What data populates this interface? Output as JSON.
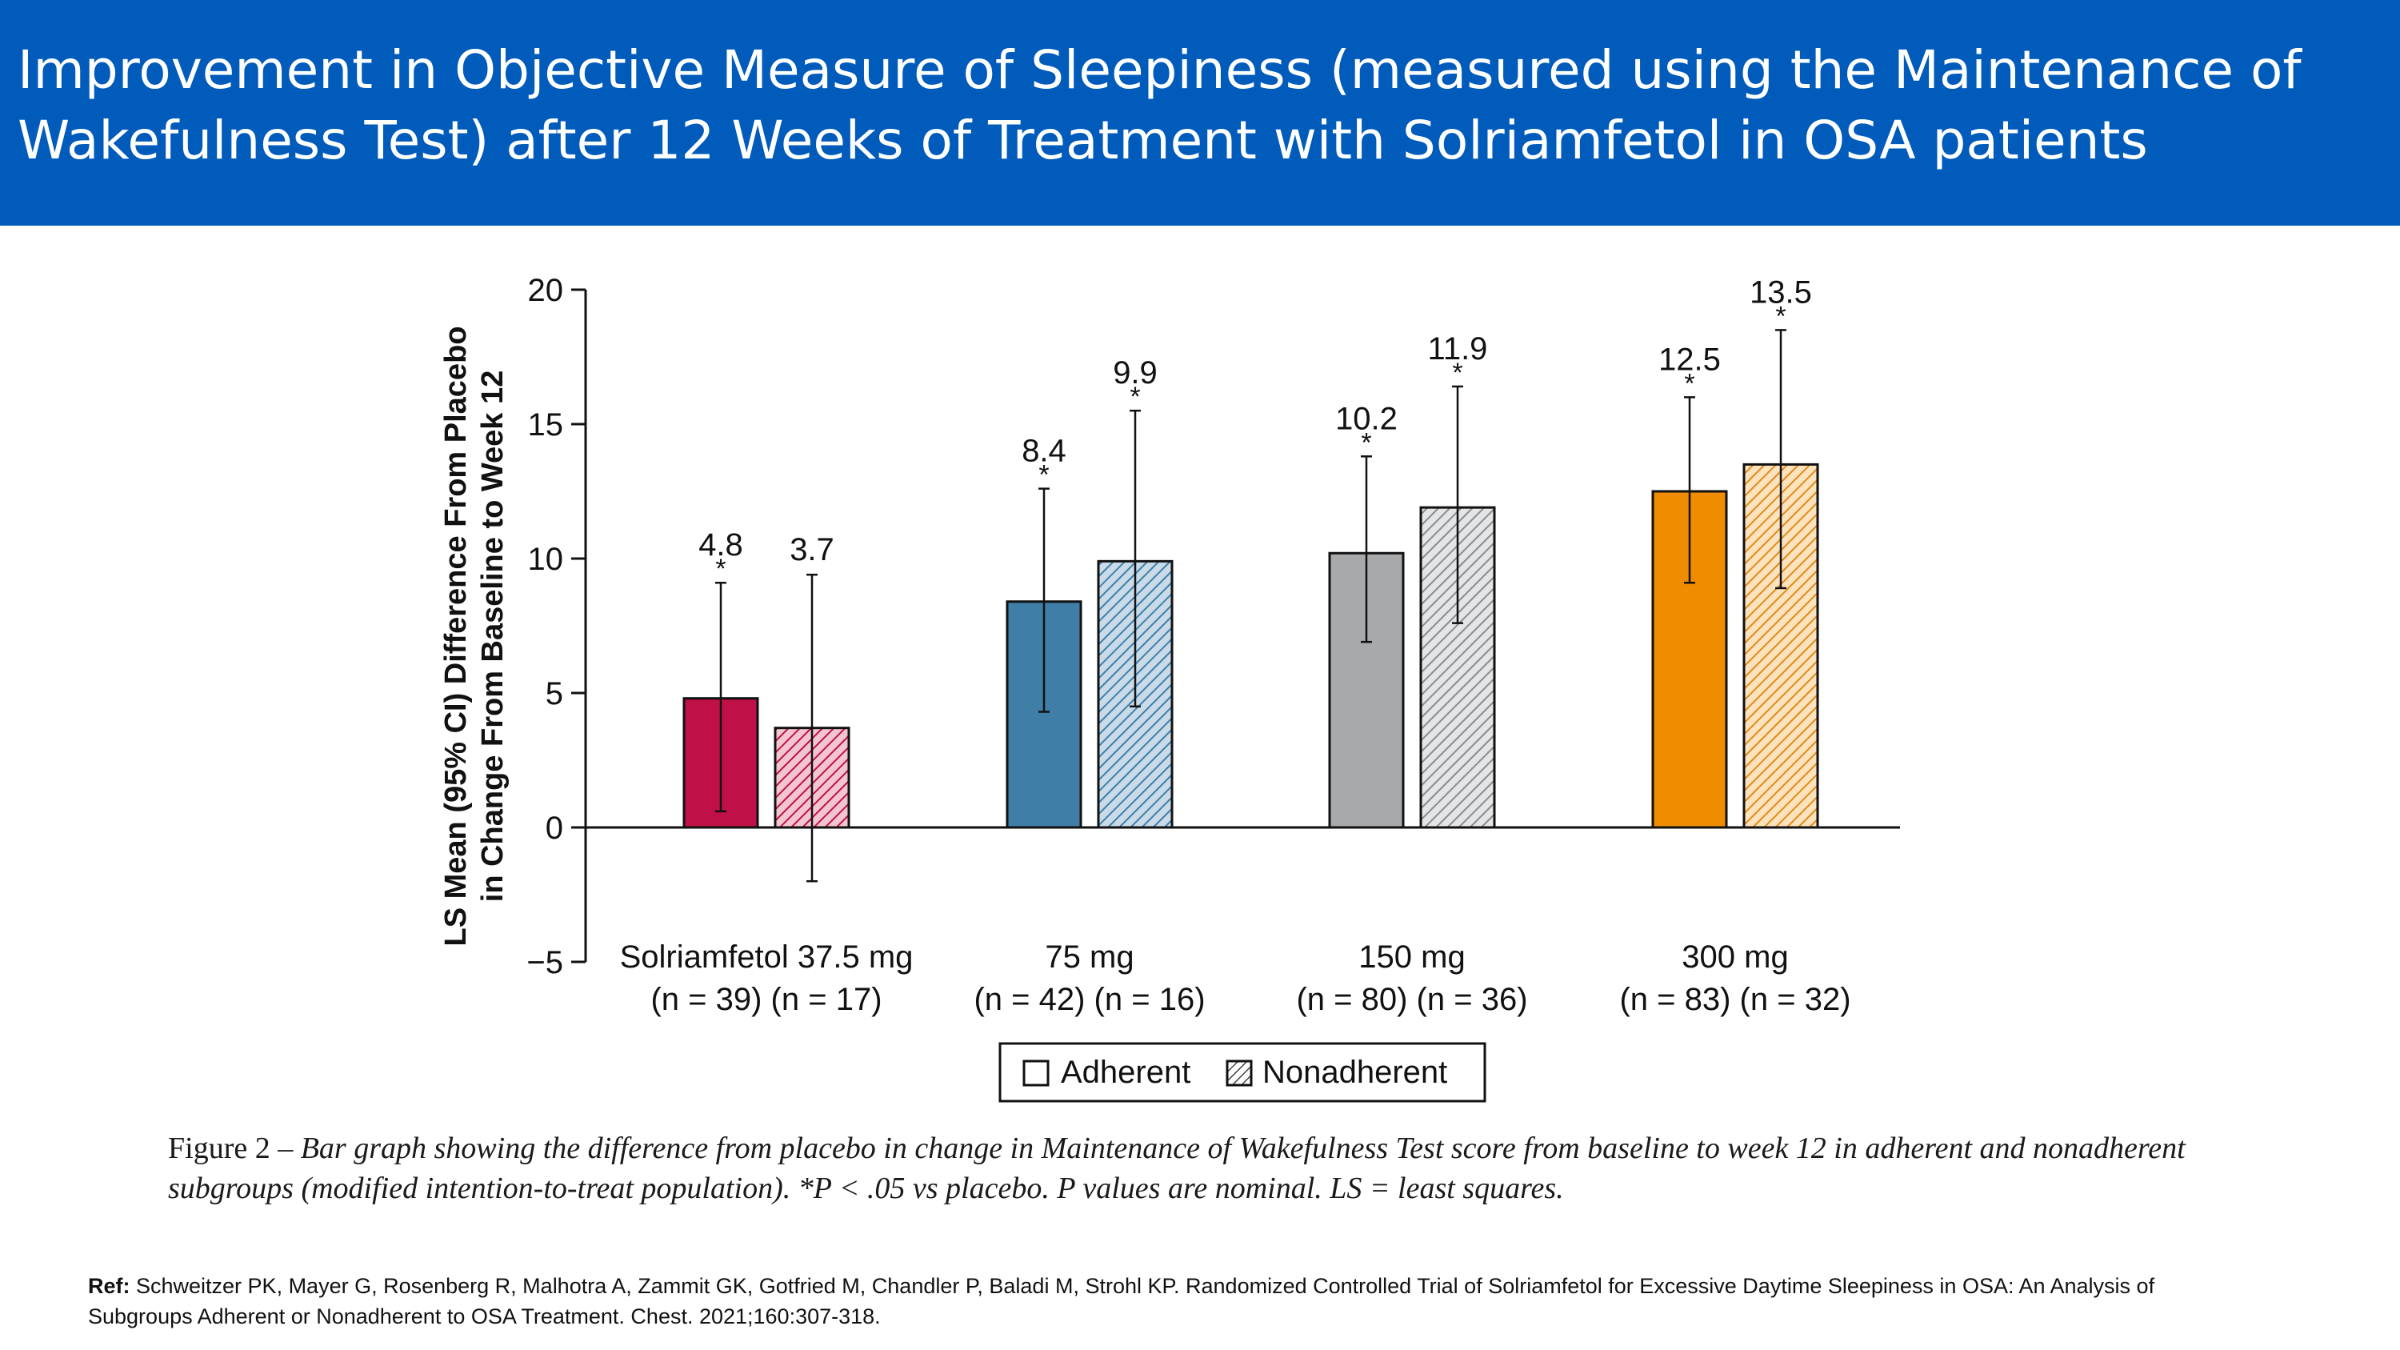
{
  "header": {
    "title": "Improvement in Objective Measure of Sleepiness (measured using the Maintenance of Wakefulness Test) after 12 Weeks of Treatment with Solriamfetol in OSA patients"
  },
  "chart_data": {
    "type": "bar",
    "ylabel_line1": "LS Mean (95% CI) Difference From Placebo",
    "ylabel_line2": "in Change From Baseline to Week 12",
    "ylim": [
      -5,
      20
    ],
    "yticks": [
      20,
      15,
      10,
      5,
      0,
      -5
    ],
    "ytick_labels": [
      "20",
      "15",
      "10",
      "5",
      "0",
      "−5"
    ],
    "groups": [
      {
        "label": "Solriamfetol 37.5 mg",
        "n_label": "(n = 39) (n = 17)",
        "color": "#c01048"
      },
      {
        "label": "75 mg",
        "n_label": "(n = 42) (n = 16)",
        "color": "#3f7ea6"
      },
      {
        "label": "150 mg",
        "n_label": "(n = 80) (n = 36)",
        "color": "#a8a9ab"
      },
      {
        "label": "300 mg",
        "n_label": "(n = 83) (n = 32)",
        "color": "#f08c00"
      }
    ],
    "series": [
      {
        "name": "Adherent",
        "values": [
          4.8,
          8.4,
          10.2,
          12.5
        ],
        "value_labels": [
          "4.8",
          "8.4",
          "10.2",
          "12.5"
        ],
        "ci_low": [
          0.6,
          4.3,
          6.9,
          9.1
        ],
        "ci_high": [
          9.1,
          12.6,
          13.8,
          16.0
        ],
        "significant": [
          true,
          true,
          true,
          true
        ]
      },
      {
        "name": "Nonadherent",
        "values": [
          3.7,
          9.9,
          11.9,
          13.5
        ],
        "value_labels": [
          "3.7",
          "9.9",
          "11.9",
          "13.5"
        ],
        "ci_low": [
          -2.0,
          4.5,
          7.6,
          8.9
        ],
        "ci_high": [
          9.4,
          15.5,
          16.4,
          18.5
        ],
        "significant": [
          false,
          true,
          true,
          true
        ]
      }
    ],
    "significance_marker": "*",
    "legend": {
      "items": [
        "Adherent",
        "Nonadherent"
      ],
      "position": "bottom-center"
    }
  },
  "caption": {
    "figure_label": "Figure 2 – ",
    "text": "Bar graph showing the difference from placebo in change in Maintenance of Wakefulness Test score from baseline to week 12 in adherent and nonadherent subgroups (modified intention-to-treat population). *P < .05 vs placebo. P values are nominal. LS = least squares."
  },
  "reference": {
    "label": "Ref:",
    "text": " Schweitzer PK, Mayer G, Rosenberg R, Malhotra A, Zammit GK, Gotfried M, Chandler P, Baladi M, Strohl KP. Randomized Controlled Trial of Solriamfetol for Excessive Daytime Sleepiness in OSA: An Analysis of Subgroups Adherent or Nonadherent to OSA Treatment. Chest. 2021;160:307-318."
  }
}
